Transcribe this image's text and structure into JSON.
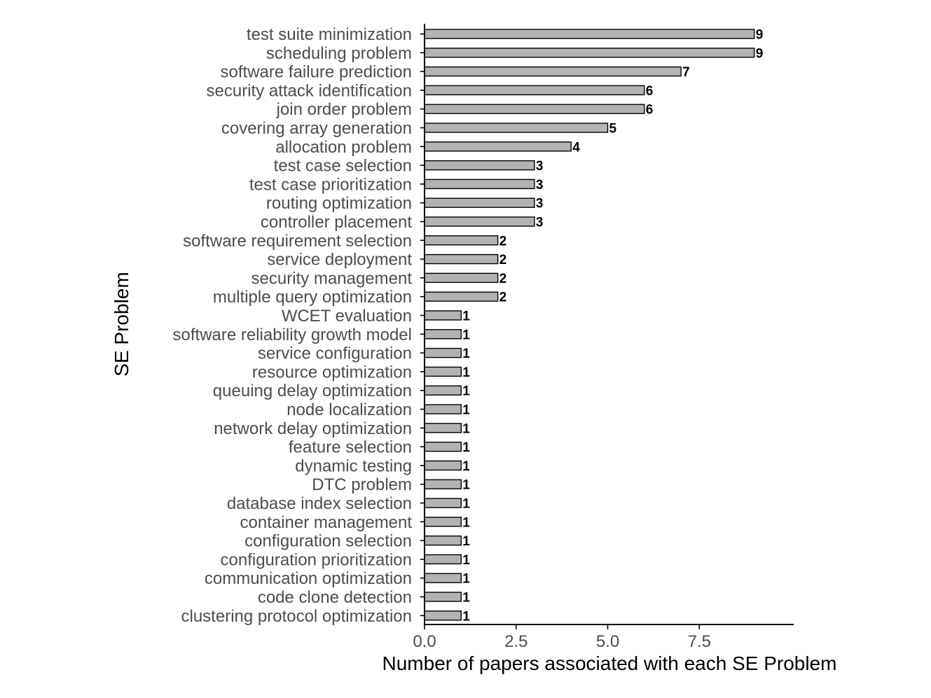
{
  "colors": {
    "bar_fill": "#b3b3b3",
    "bar_stroke": "#000000",
    "axis": "#000000",
    "tick_text": "#4d4d4d"
  },
  "chart_data": {
    "type": "bar",
    "orientation": "horizontal",
    "xlabel": "Number of papers associated with each SE Problem",
    "ylabel": "SE Problem",
    "xlim": [
      0,
      9.9
    ],
    "xticks": [
      0,
      2.5,
      5,
      7.5
    ],
    "xtick_labels": [
      "0.0",
      "2.5",
      "5.0",
      "7.5"
    ],
    "grid": false,
    "categories": [
      "test suite minimization",
      "scheduling problem",
      "software failure prediction",
      "security attack identification",
      "join order problem",
      "covering array generation",
      "allocation problem",
      "test case selection",
      "test case prioritization",
      "routing optimization",
      "controller placement",
      "software requirement selection",
      "service deployment",
      "security management",
      "multiple query optimization",
      "WCET evaluation",
      "software reliability growth model",
      "service configuration",
      "resource optimization",
      "queuing delay optimization",
      "node localization",
      "network delay optimization",
      "feature selection",
      "dynamic testing",
      "DTC problem",
      "database index selection",
      "container management",
      "configuration selection",
      "configuration prioritization",
      "communication optimization",
      "code clone detection",
      "clustering protocol optimization"
    ],
    "values": [
      9,
      9,
      7,
      6,
      6,
      5,
      4,
      3,
      3,
      3,
      3,
      2,
      2,
      2,
      2,
      1,
      1,
      1,
      1,
      1,
      1,
      1,
      1,
      1,
      1,
      1,
      1,
      1,
      1,
      1,
      1,
      1
    ]
  }
}
